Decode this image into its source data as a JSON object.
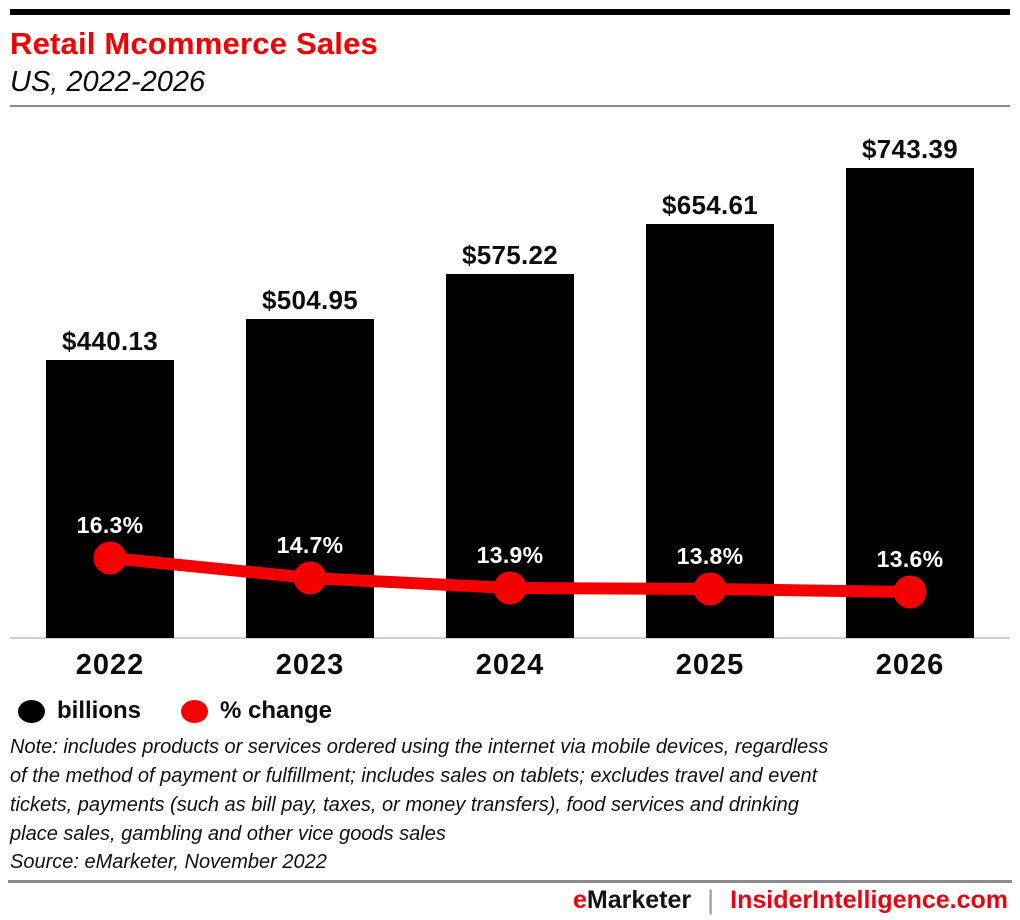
{
  "header": {
    "title": "Retail Mcommerce Sales",
    "subtitle": "US, 2022-2026"
  },
  "colors": {
    "accent_red": "#f40000",
    "bar_black": "#000000",
    "axis_line": "#c8cfdd",
    "footer_site_red": "#e40613"
  },
  "chart_data": {
    "type": "bar",
    "categories": [
      "2022",
      "2023",
      "2024",
      "2025",
      "2026"
    ],
    "series": [
      {
        "name": "billions",
        "type": "bar",
        "color": "#000000",
        "values": [
          440.13,
          504.95,
          575.22,
          654.61,
          743.39
        ],
        "labels": [
          "$440.13",
          "$504.95",
          "$575.22",
          "$654.61",
          "$743.39"
        ]
      },
      {
        "name": "% change",
        "type": "line",
        "color": "#f40000",
        "values": [
          16.3,
          14.7,
          13.9,
          13.8,
          13.6
        ],
        "labels": [
          "16.3%",
          "14.7%",
          "13.9%",
          "13.8%",
          "13.6%"
        ]
      }
    ],
    "title": "Retail Mcommerce Sales",
    "subtitle": "US, 2022-2026",
    "xlabel": "",
    "ylabel": "",
    "grid": false,
    "legend_position": "bottom-left",
    "legend": [
      {
        "label": "billions",
        "color": "#000000"
      },
      {
        "label": "% change",
        "color": "#f40000"
      }
    ]
  },
  "note": {
    "lines": [
      "Note: includes products or services ordered using the internet via mobile devices, regardless",
      "of the method of payment or fulfillment; includes sales on tablets; excludes travel and event",
      "tickets, payments (such as bill pay, taxes, or money transfers), food services and drinking",
      "place sales, gambling and other vice goods sales"
    ]
  },
  "source": "Source: eMarketer, November 2022",
  "footer": {
    "brand_e": "e",
    "brand_rest": "Marketer",
    "separator": "|",
    "site": "InsiderIntelligence.com"
  }
}
